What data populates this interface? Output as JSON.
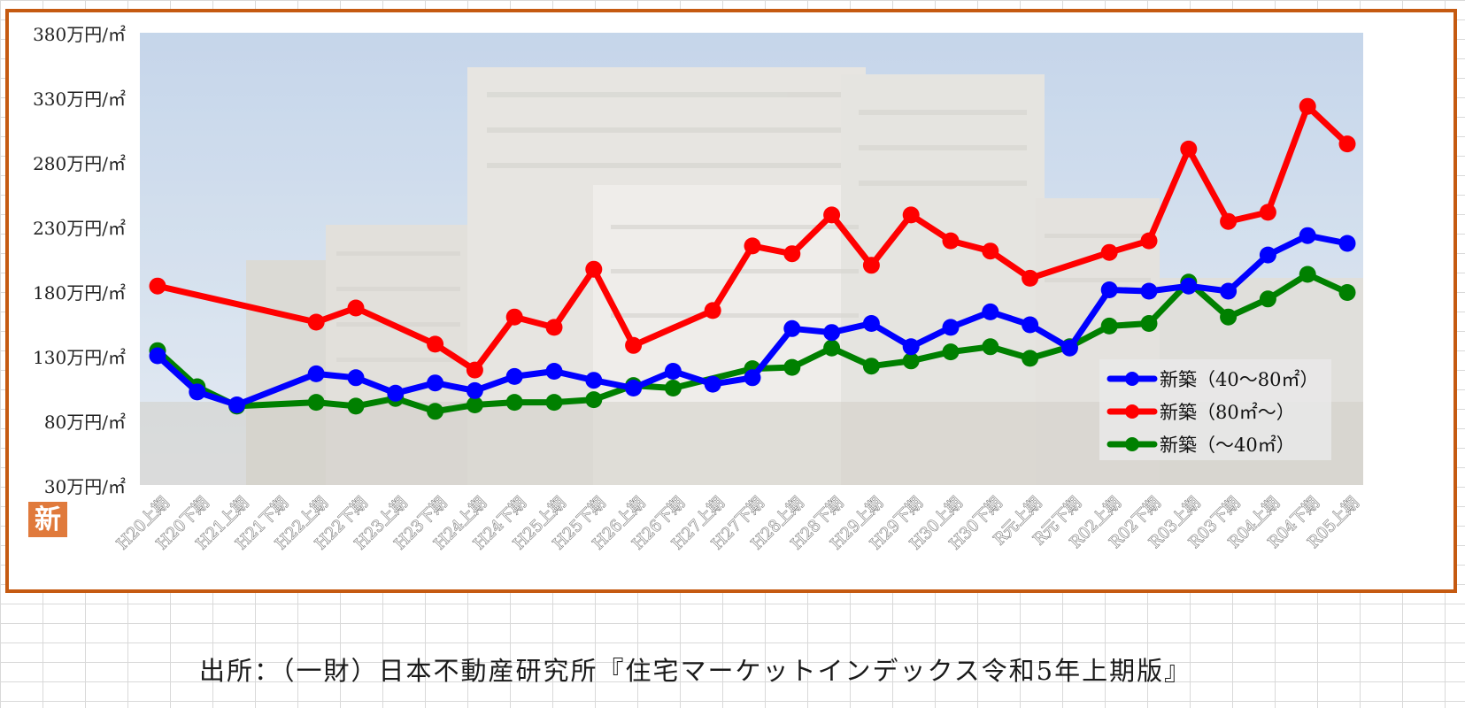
{
  "chart_data": {
    "type": "line",
    "ylim": [
      30,
      380
    ],
    "yticks": [
      "30万円/㎡",
      "80万円/㎡",
      "130万円/㎡",
      "180万円/㎡",
      "230万円/㎡",
      "280万円/㎡",
      "330万円/㎡",
      "380万円/㎡"
    ],
    "categories": [
      "H20上期",
      "H20下期",
      "H21上期",
      "H21下期",
      "H22上期",
      "H22下期",
      "H23上期",
      "H23下期",
      "H24上期",
      "H24下期",
      "H25上期",
      "H25下期",
      "H26上期",
      "H26下期",
      "H27上期",
      "H27下期",
      "H28上期",
      "H28下期",
      "H29上期",
      "H29下期",
      "H30上期",
      "H30下期",
      "R元上期",
      "R元下期",
      "R02上期",
      "R02下期",
      "R03上期",
      "R03下期",
      "R04上期",
      "R04下期",
      "R05上期"
    ],
    "series": [
      {
        "name": "新築（40～80㎡）",
        "color": "#0000ff",
        "values": [
          130,
          102,
          92,
          null,
          116,
          113,
          101,
          109,
          103,
          114,
          118,
          111,
          105,
          118,
          108,
          113,
          151,
          148,
          155,
          137,
          152,
          164,
          154,
          136,
          181,
          180,
          184,
          180,
          208,
          223,
          217
        ]
      },
      {
        "name": "新築（80㎡～）",
        "color": "#ff0000",
        "values": [
          184,
          null,
          null,
          null,
          156,
          167,
          null,
          139,
          119,
          160,
          152,
          197,
          138,
          null,
          165,
          215,
          209,
          239,
          200,
          239,
          219,
          211,
          190,
          null,
          210,
          219,
          290,
          234,
          241,
          323,
          294
        ]
      },
      {
        "name": "新築（～40㎡）",
        "color": "#008000",
        "values": [
          134,
          106,
          91,
          null,
          94,
          91,
          97,
          87,
          92,
          94,
          94,
          96,
          107,
          105,
          null,
          120,
          121,
          136,
          122,
          126,
          133,
          137,
          128,
          137,
          153,
          155,
          187,
          160,
          174,
          193,
          179
        ]
      }
    ]
  },
  "source": "出所：（一財）日本不動産研究所『住宅マーケットインデックス令和5年上期版』",
  "logo_char": "新"
}
